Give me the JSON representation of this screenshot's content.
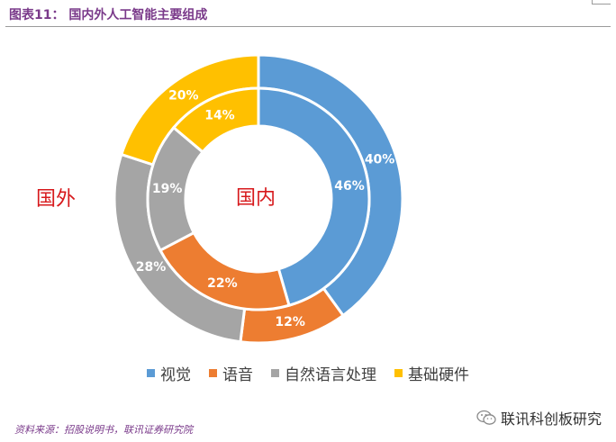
{
  "title": "图表11：  国内外人工智能主要组成",
  "chart_data": {
    "type": "pie",
    "subtype": "nested-donut",
    "categories": [
      "视觉",
      "语音",
      "自然语言处理",
      "基础硬件"
    ],
    "colors": [
      "#5b9bd5",
      "#ed7d31",
      "#a5a5a5",
      "#ffc000"
    ],
    "series": [
      {
        "name": "国外",
        "ring": "outer",
        "values": [
          40,
          12,
          28,
          20
        ],
        "labels": [
          "40%",
          "12%",
          "28%",
          "20%"
        ]
      },
      {
        "name": "国内",
        "ring": "inner",
        "values": [
          46,
          22,
          19,
          14
        ],
        "labels": [
          "46%",
          "22%",
          "19%",
          "14%"
        ]
      }
    ],
    "legend_position": "bottom"
  },
  "source": "资料来源：招股说明书，联讯证券研究院",
  "watermark": {
    "text": "联讯科创板研究",
    "icon": "wechat-icon"
  }
}
